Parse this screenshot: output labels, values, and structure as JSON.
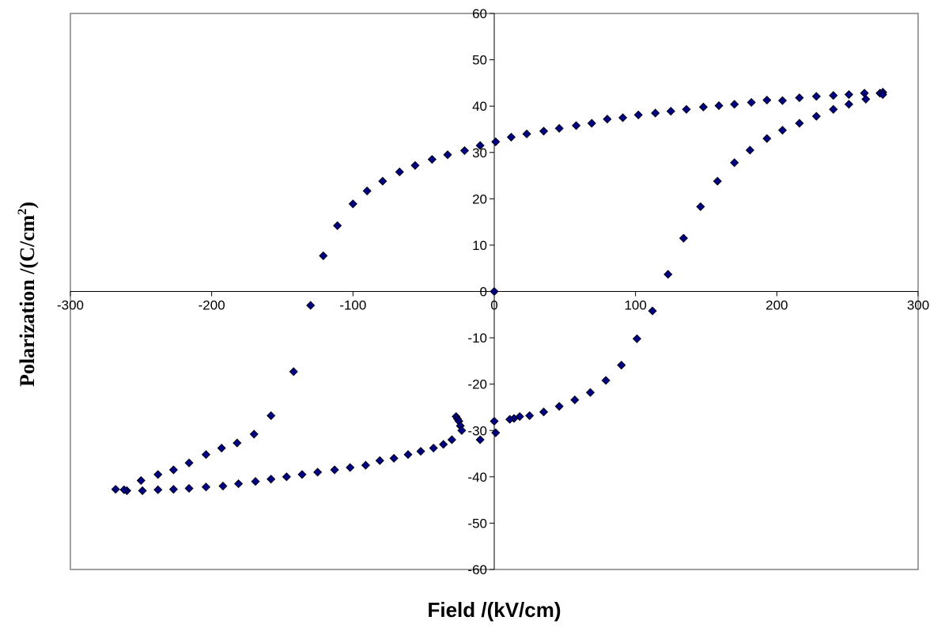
{
  "chart_data": {
    "type": "scatter",
    "title": "",
    "xlabel": "Field /(kV/cm)",
    "ylabel": {
      "main": "Polarization /(C/cm",
      "superscript": "2",
      "suffix": ")"
    },
    "xlim": [
      -300,
      300
    ],
    "ylim": [
      -60,
      60
    ],
    "xticks": [
      -300,
      -200,
      -100,
      0,
      100,
      200,
      300
    ],
    "yticks": [
      -60,
      -50,
      -40,
      -30,
      -20,
      -10,
      0,
      10,
      20,
      30,
      40,
      50,
      60
    ],
    "grid": false,
    "legend": "none",
    "marker": "diamond",
    "marker_color": "#000080",
    "series": [
      {
        "values": [
          [
            0,
            0
          ],
          [
            -27,
            -27
          ],
          [
            -26,
            -27.5
          ],
          [
            -25,
            -28
          ],
          [
            -24,
            -29
          ],
          [
            -23,
            -30
          ],
          [
            -30,
            -32
          ],
          [
            -36,
            -33
          ],
          [
            -43,
            -33.8
          ],
          [
            -52,
            -34.5
          ],
          [
            -61,
            -35.2
          ],
          [
            -71,
            -36
          ],
          [
            -81,
            -36.5
          ],
          [
            -91,
            -37.5
          ],
          [
            -102,
            -38
          ],
          [
            -113,
            -38.5
          ],
          [
            -125,
            -39
          ],
          [
            -136,
            -39.5
          ],
          [
            -147,
            -40
          ],
          [
            -158,
            -40.5
          ],
          [
            -169,
            -41
          ],
          [
            -181,
            -41.5
          ],
          [
            -192,
            -42
          ],
          [
            -204,
            -42.2
          ],
          [
            -216,
            -42.5
          ],
          [
            -227,
            -42.7
          ],
          [
            -238,
            -42.8
          ],
          [
            -249,
            -43
          ],
          [
            -260,
            -43
          ]
        ]
      },
      {
        "values": [
          [
            -268,
            -42.7
          ],
          [
            -262,
            -42.8
          ],
          [
            -250,
            -40.8
          ],
          [
            -238,
            -39.5
          ],
          [
            -227,
            -38.5
          ],
          [
            -216,
            -37
          ],
          [
            -204,
            -35.2
          ],
          [
            -193,
            -33.8
          ],
          [
            -182,
            -32.7
          ],
          [
            -170,
            -30.8
          ],
          [
            -158,
            -26.8
          ],
          [
            -142,
            -17.3
          ],
          [
            -130,
            -3
          ],
          [
            -121,
            7.7
          ],
          [
            -111,
            14.2
          ],
          [
            -100,
            18.9
          ],
          [
            -90,
            21.7
          ],
          [
            -79,
            23.8
          ],
          [
            -67,
            25.8
          ],
          [
            -56,
            27.2
          ],
          [
            -44,
            28.5
          ],
          [
            -33,
            29.5
          ],
          [
            -21,
            30.4
          ],
          [
            -10,
            31.5
          ],
          [
            1,
            32.3
          ],
          [
            12,
            33.3
          ],
          [
            23,
            34
          ],
          [
            35,
            34.6
          ],
          [
            46,
            35.2
          ],
          [
            58,
            35.8
          ],
          [
            69,
            36.3
          ],
          [
            80,
            37.2
          ],
          [
            91,
            37.5
          ],
          [
            102,
            38.1
          ],
          [
            114,
            38.5
          ],
          [
            125,
            38.9
          ],
          [
            136,
            39.3
          ],
          [
            148,
            39.8
          ],
          [
            159,
            40.1
          ],
          [
            170,
            40.4
          ],
          [
            182,
            40.8
          ],
          [
            193,
            41.3
          ],
          [
            204,
            41.2
          ],
          [
            216,
            41.8
          ],
          [
            228,
            42.1
          ],
          [
            240,
            42.3
          ],
          [
            251,
            42.5
          ],
          [
            262,
            42.8
          ],
          [
            273,
            42.8
          ],
          [
            275,
            43
          ]
        ]
      },
      {
        "values": [
          [
            275,
            42.5
          ],
          [
            263,
            41.5
          ],
          [
            251,
            40.4
          ],
          [
            240,
            39.3
          ],
          [
            228,
            37.8
          ],
          [
            216,
            36.3
          ],
          [
            204,
            34.8
          ],
          [
            193,
            33
          ],
          [
            181,
            30.5
          ],
          [
            170,
            27.8
          ],
          [
            158,
            23.8
          ],
          [
            146,
            18.3
          ],
          [
            134,
            11.5
          ],
          [
            123,
            3.7
          ],
          [
            112,
            -4.2
          ],
          [
            101,
            -10.2
          ],
          [
            90,
            -15.9
          ],
          [
            79,
            -19.2
          ],
          [
            68,
            -21.8
          ],
          [
            57,
            -23.4
          ],
          [
            46,
            -24.8
          ],
          [
            35,
            -26
          ],
          [
            25,
            -26.8
          ],
          [
            18,
            -27
          ],
          [
            14,
            -27.4
          ],
          [
            11,
            -27.6
          ],
          [
            0,
            -28
          ],
          [
            1,
            -30.5
          ],
          [
            -10,
            -32
          ]
        ]
      }
    ]
  }
}
